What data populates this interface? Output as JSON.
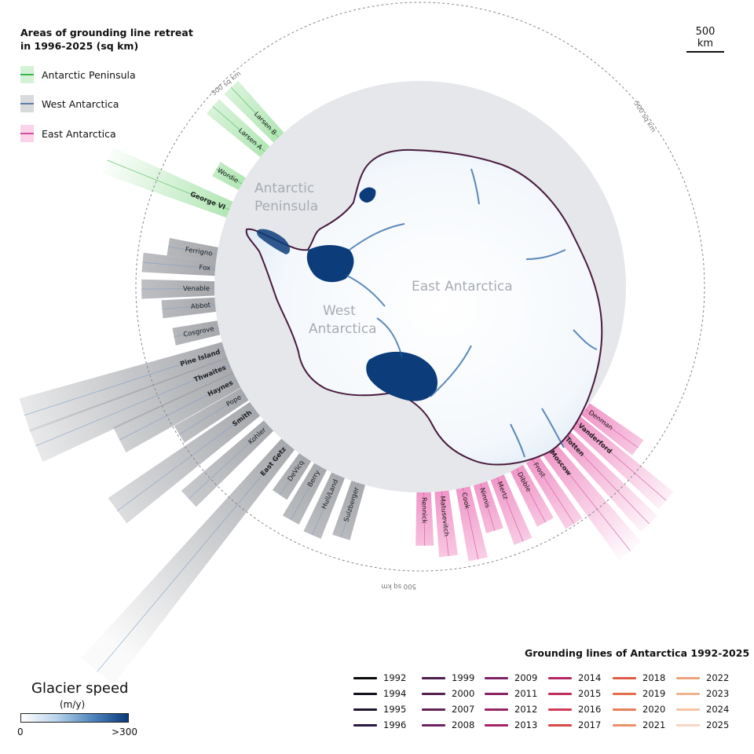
{
  "legend": {
    "title_line1": "Areas of grounding line retreat",
    "title_line2": "in 1996-2025 (sq km)",
    "regions": [
      {
        "label": "Antarctic Peninsula",
        "fill": "#d6f2d6",
        "line": "#3bb54a"
      },
      {
        "label": "West Antarctica",
        "fill": "#d9dadc",
        "line": "#5f7fa8"
      },
      {
        "label": "East Antarctica",
        "fill": "#f9d3ea",
        "line": "#d04fa0"
      }
    ]
  },
  "scale_bar": {
    "label": "500 km"
  },
  "map_labels": {
    "ring_label": "500 sq km",
    "peninsula_line1": "Antarctic",
    "peninsula_line2": "Peninsula",
    "west_line1": "West",
    "west_line2": "Antarctica",
    "east": "East Antarctica"
  },
  "glaciers": [
    {
      "name": "Larsen B",
      "region": "peninsula",
      "bold": false
    },
    {
      "name": "Larsen A",
      "region": "peninsula",
      "bold": false
    },
    {
      "name": "Wordie",
      "region": "peninsula",
      "bold": false
    },
    {
      "name": "George VI",
      "region": "peninsula",
      "bold": true
    },
    {
      "name": "Ferrigno",
      "region": "west",
      "bold": false
    },
    {
      "name": "Fox",
      "region": "west",
      "bold": false
    },
    {
      "name": "Venable",
      "region": "west",
      "bold": false
    },
    {
      "name": "Abbot",
      "region": "west",
      "bold": false
    },
    {
      "name": "Cosgrove",
      "region": "west",
      "bold": false
    },
    {
      "name": "Pine Island",
      "region": "west",
      "bold": true
    },
    {
      "name": "Thwaites",
      "region": "west",
      "bold": true
    },
    {
      "name": "Haynes",
      "region": "west",
      "bold": true
    },
    {
      "name": "Pope",
      "region": "west",
      "bold": false
    },
    {
      "name": "Smith",
      "region": "west",
      "bold": true
    },
    {
      "name": "Kohler",
      "region": "west",
      "bold": false
    },
    {
      "name": "East Getz",
      "region": "west",
      "bold": true
    },
    {
      "name": "DeVicq",
      "region": "west",
      "bold": false
    },
    {
      "name": "Berry",
      "region": "west",
      "bold": false
    },
    {
      "name": "Hull/Land",
      "region": "west",
      "bold": false
    },
    {
      "name": "Sulzberger",
      "region": "west",
      "bold": false
    },
    {
      "name": "Rennick",
      "region": "east",
      "bold": false
    },
    {
      "name": "Matusevitch",
      "region": "east",
      "bold": false
    },
    {
      "name": "Cook",
      "region": "east",
      "bold": false
    },
    {
      "name": "Ninnis",
      "region": "east",
      "bold": false
    },
    {
      "name": "Mertz",
      "region": "east",
      "bold": false
    },
    {
      "name": "Dibble",
      "region": "east",
      "bold": false
    },
    {
      "name": "Frost",
      "region": "east",
      "bold": false
    },
    {
      "name": "Moscow",
      "region": "east",
      "bold": true
    },
    {
      "name": "Totten",
      "region": "east",
      "bold": true
    },
    {
      "name": "Vanderford",
      "region": "east",
      "bold": true
    },
    {
      "name": "Denman",
      "region": "east",
      "bold": false
    }
  ],
  "grounding_lines": {
    "title": "Grounding lines of Antarctica 1992-2025",
    "years": [
      {
        "year": "1992",
        "color": "#0a0a0a"
      },
      {
        "year": "1994",
        "color": "#15101e"
      },
      {
        "year": "1995",
        "color": "#1f1530"
      },
      {
        "year": "1996",
        "color": "#2a1a3e"
      },
      {
        "year": "1999",
        "color": "#4a1f4a"
      },
      {
        "year": "2000",
        "color": "#56204f"
      },
      {
        "year": "2007",
        "color": "#63215a"
      },
      {
        "year": "2008",
        "color": "#6f2260"
      },
      {
        "year": "2009",
        "color": "#7d2363"
      },
      {
        "year": "2011",
        "color": "#8a2366"
      },
      {
        "year": "2012",
        "color": "#982467"
      },
      {
        "year": "2013",
        "color": "#a62466"
      },
      {
        "year": "2014",
        "color": "#b52762"
      },
      {
        "year": "2015",
        "color": "#c2305a"
      },
      {
        "year": "2016",
        "color": "#cd3c51"
      },
      {
        "year": "2017",
        "color": "#d64a48"
      },
      {
        "year": "2018",
        "color": "#de5c45"
      },
      {
        "year": "2019",
        "color": "#e36d4c"
      },
      {
        "year": "2020",
        "color": "#e77f58"
      },
      {
        "year": "2021",
        "color": "#ea9167"
      },
      {
        "year": "2022",
        "color": "#eda27a"
      },
      {
        "year": "2023",
        "color": "#f0b390"
      },
      {
        "year": "2024",
        "color": "#f3c4a7"
      },
      {
        "year": "2025",
        "color": "#f6d6c2"
      }
    ]
  },
  "speed_legend": {
    "title": "Glacier speed",
    "unit": "(m/y)",
    "min": "0",
    "max": ">300"
  }
}
